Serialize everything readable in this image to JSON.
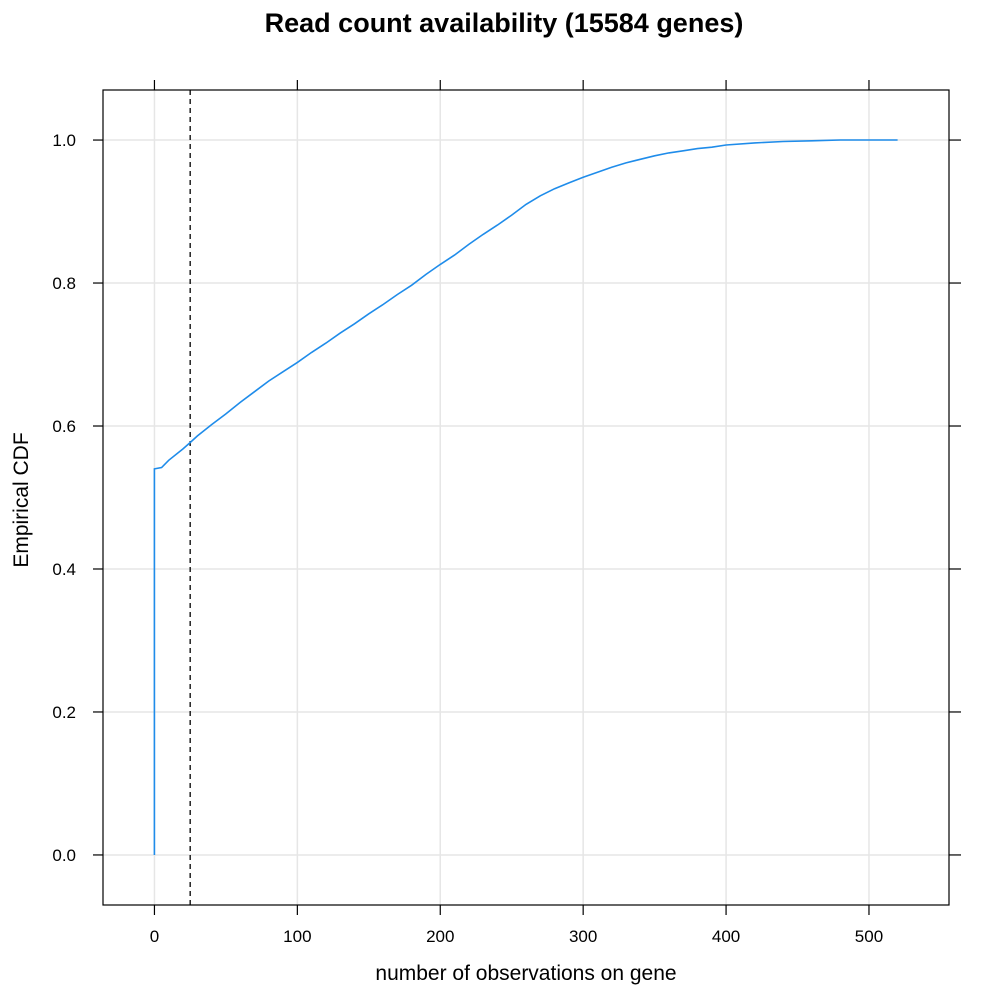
{
  "chart_data": {
    "type": "line",
    "title": "Read count availability (15584 genes)",
    "xlabel": "number of observations on gene",
    "ylabel": "Empirical CDF",
    "xlim": [
      -36,
      556
    ],
    "ylim": [
      -0.07,
      1.07
    ],
    "x_ticks": [
      0,
      100,
      200,
      300,
      400,
      500
    ],
    "y_ticks": [
      0.0,
      0.2,
      0.4,
      0.6,
      0.8,
      1.0
    ],
    "y_tick_labels": [
      "0.0",
      "0.2",
      "0.4",
      "0.6",
      "0.8",
      "1.0"
    ],
    "grid": true,
    "reference_line": {
      "x": 25,
      "style": "dashed",
      "color": "#000000"
    },
    "series": [
      {
        "color": "#1f8cea",
        "x": [
          0,
          0,
          5,
          10,
          20,
          25,
          30,
          40,
          50,
          60,
          70,
          80,
          90,
          100,
          110,
          120,
          130,
          140,
          150,
          160,
          170,
          180,
          190,
          200,
          210,
          220,
          230,
          240,
          250,
          260,
          270,
          280,
          290,
          300,
          310,
          320,
          330,
          340,
          350,
          360,
          370,
          380,
          390,
          400,
          420,
          440,
          460,
          480,
          500,
          520
        ],
        "y": [
          0.0,
          0.54,
          0.542,
          0.552,
          0.568,
          0.577,
          0.586,
          0.602,
          0.617,
          0.633,
          0.648,
          0.663,
          0.676,
          0.689,
          0.703,
          0.716,
          0.73,
          0.743,
          0.757,
          0.77,
          0.784,
          0.797,
          0.812,
          0.826,
          0.839,
          0.854,
          0.868,
          0.881,
          0.895,
          0.91,
          0.922,
          0.932,
          0.94,
          0.948,
          0.955,
          0.962,
          0.968,
          0.973,
          0.978,
          0.982,
          0.985,
          0.988,
          0.99,
          0.993,
          0.996,
          0.998,
          0.999,
          1.0,
          1.0,
          1.0
        ]
      }
    ]
  }
}
